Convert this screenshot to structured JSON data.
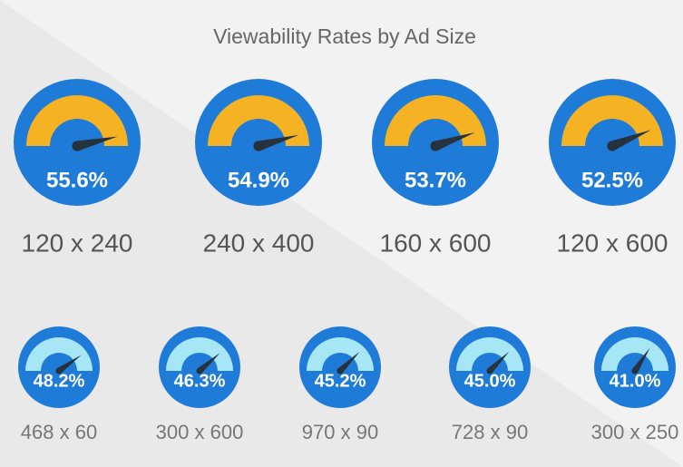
{
  "title": "Viewability Rates by Ad Size",
  "chart_data": [
    {
      "type": "gauge",
      "categories": [
        "120 x 240",
        "240 x 400",
        "160 x 600",
        "120 x 600"
      ],
      "values": [
        55.6,
        54.9,
        53.7,
        52.5
      ],
      "value_labels": [
        "55.6%",
        "54.9%",
        "53.7%",
        "52.5%"
      ],
      "color": "#f5b324",
      "ylim": [
        0,
        60
      ]
    },
    {
      "type": "gauge",
      "categories": [
        "468 x 60",
        "300 x 600",
        "970 x 90",
        "728 x 90",
        "300 x 250"
      ],
      "values": [
        48.2,
        46.3,
        45.2,
        45.0,
        41.0
      ],
      "value_labels": [
        "48.2%",
        "46.3%",
        "45.2%",
        "45.0%",
        "41.0%"
      ],
      "color": "#a6e6f5",
      "ylim": [
        0,
        60
      ]
    }
  ]
}
